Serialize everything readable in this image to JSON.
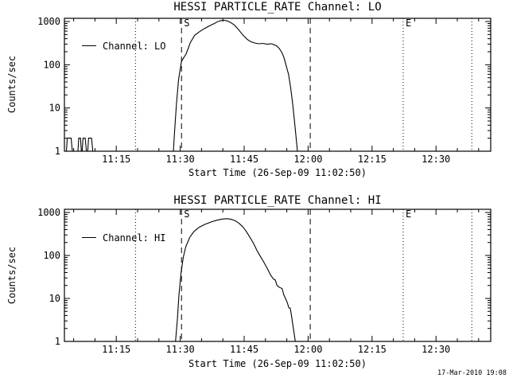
{
  "page": {
    "background": "#ffffff",
    "foreground": "#000000",
    "timestamp": "17-Mar-2010 19:08"
  },
  "chart_data": [
    {
      "type": "line",
      "title": "HESSI PARTICLE_RATE Channel: LO",
      "xlabel": "Start Time (26-Sep-09 11:02:50)",
      "ylabel": "Counts/sec",
      "legend": "Channel: LO",
      "legend_position": "upper-left-inside",
      "grid": false,
      "line_color": "#000000",
      "yscale": "log",
      "ylim": [
        1,
        1185
      ],
      "y_ticks": [
        {
          "v": 1,
          "label": "1"
        },
        {
          "v": 10,
          "label": "10"
        },
        {
          "v": 100,
          "label": "100"
        },
        {
          "v": 1000,
          "label": "1000"
        }
      ],
      "x_unit": "minutes after 11:00 on 26-Sep-09",
      "x_range": [
        2.833,
        102.833
      ],
      "x_minor_step": 5,
      "x_ticks": [
        {
          "x": 15,
          "label": "11:15"
        },
        {
          "x": 30,
          "label": "11:30"
        },
        {
          "x": 45,
          "label": "11:45"
        },
        {
          "x": 60,
          "label": "12:00"
        },
        {
          "x": 75,
          "label": "12:15"
        },
        {
          "x": 90,
          "label": "12:30"
        }
      ],
      "events": [
        {
          "x": 19.5,
          "style": "dotted",
          "label": ""
        },
        {
          "x": 30.3,
          "style": "dashed",
          "label": "S"
        },
        {
          "x": 60.5,
          "style": "dashed",
          "label": ""
        },
        {
          "x": 82.3,
          "style": "dotted",
          "label": "E"
        },
        {
          "x": 98.4,
          "style": "dotted",
          "label": ""
        }
      ],
      "points": [
        [
          2.83,
          1
        ],
        [
          3.3,
          1
        ],
        [
          3.5,
          2
        ],
        [
          4.4,
          2
        ],
        [
          4.7,
          1
        ],
        [
          6.0,
          1
        ],
        [
          6.2,
          2
        ],
        [
          6.6,
          2
        ],
        [
          6.8,
          1
        ],
        [
          7.0,
          1
        ],
        [
          7.2,
          2
        ],
        [
          7.7,
          2
        ],
        [
          8.0,
          1
        ],
        [
          8.3,
          1
        ],
        [
          8.5,
          2
        ],
        [
          9.2,
          2
        ],
        [
          9.5,
          1
        ],
        [
          25.0,
          1
        ],
        [
          28.4,
          1
        ],
        [
          28.7,
          3
        ],
        [
          29.1,
          12
        ],
        [
          29.6,
          45
        ],
        [
          30.3,
          120
        ],
        [
          31.4,
          180
        ],
        [
          32.4,
          330
        ],
        [
          33.4,
          480
        ],
        [
          34.5,
          580
        ],
        [
          35.6,
          680
        ],
        [
          36.8,
          790
        ],
        [
          38.0,
          900
        ],
        [
          38.8,
          990
        ],
        [
          39.5,
          1050
        ],
        [
          40.3,
          1065
        ],
        [
          41.0,
          1030
        ],
        [
          41.8,
          950
        ],
        [
          42.6,
          840
        ],
        [
          43.4,
          700
        ],
        [
          44.2,
          560
        ],
        [
          45.0,
          450
        ],
        [
          45.8,
          380
        ],
        [
          46.6,
          340
        ],
        [
          47.4,
          320
        ],
        [
          48.4,
          305
        ],
        [
          49.4,
          312
        ],
        [
          50.4,
          298
        ],
        [
          51.4,
          306
        ],
        [
          52.0,
          292
        ],
        [
          52.6,
          272
        ],
        [
          53.2,
          240
        ],
        [
          53.8,
          195
        ],
        [
          54.3,
          150
        ],
        [
          54.8,
          100
        ],
        [
          55.4,
          60
        ],
        [
          55.9,
          30
        ],
        [
          56.4,
          12
        ],
        [
          56.9,
          4
        ],
        [
          57.3,
          1.6
        ],
        [
          57.5,
          1
        ]
      ]
    },
    {
      "type": "line",
      "title": "HESSI PARTICLE_RATE Channel: HI",
      "xlabel": "Start Time (26-Sep-09 11:02:50)",
      "ylabel": "Counts/sec",
      "legend": "Channel: HI",
      "legend_position": "upper-left-inside",
      "grid": false,
      "line_color": "#000000",
      "yscale": "log",
      "ylim": [
        1,
        1185
      ],
      "y_ticks": [
        {
          "v": 1,
          "label": "1"
        },
        {
          "v": 10,
          "label": "10"
        },
        {
          "v": 100,
          "label": "100"
        },
        {
          "v": 1000,
          "label": "1000"
        }
      ],
      "x_unit": "minutes after 11:00 on 26-Sep-09",
      "x_range": [
        2.833,
        102.833
      ],
      "x_minor_step": 5,
      "x_ticks": [
        {
          "x": 15,
          "label": "11:15"
        },
        {
          "x": 30,
          "label": "11:30"
        },
        {
          "x": 45,
          "label": "11:45"
        },
        {
          "x": 60,
          "label": "12:00"
        },
        {
          "x": 75,
          "label": "12:15"
        },
        {
          "x": 90,
          "label": "12:30"
        }
      ],
      "events": [
        {
          "x": 19.5,
          "style": "dotted",
          "label": ""
        },
        {
          "x": 30.3,
          "style": "dashed",
          "label": "S"
        },
        {
          "x": 60.5,
          "style": "dashed",
          "label": ""
        },
        {
          "x": 82.3,
          "style": "dotted",
          "label": "E"
        },
        {
          "x": 98.4,
          "style": "dotted",
          "label": ""
        }
      ],
      "points": [
        [
          2.83,
          1
        ],
        [
          28.9,
          1
        ],
        [
          29.3,
          3
        ],
        [
          29.7,
          12
        ],
        [
          30.2,
          40
        ],
        [
          30.7,
          90
        ],
        [
          31.3,
          160
        ],
        [
          32.2,
          260
        ],
        [
          33.2,
          360
        ],
        [
          34.4,
          450
        ],
        [
          35.8,
          530
        ],
        [
          37.2,
          600
        ],
        [
          38.6,
          660
        ],
        [
          39.8,
          700
        ],
        [
          40.8,
          715
        ],
        [
          41.8,
          700
        ],
        [
          42.8,
          650
        ],
        [
          43.8,
          560
        ],
        [
          44.8,
          450
        ],
        [
          45.6,
          350
        ],
        [
          46.4,
          260
        ],
        [
          47.2,
          190
        ],
        [
          48.0,
          130
        ],
        [
          48.8,
          95
        ],
        [
          49.6,
          70
        ],
        [
          50.4,
          50
        ],
        [
          51.2,
          35
        ],
        [
          51.9,
          28
        ],
        [
          52.3,
          27
        ],
        [
          52.7,
          20
        ],
        [
          53.3,
          18
        ],
        [
          53.9,
          17
        ],
        [
          54.3,
          12
        ],
        [
          54.7,
          10
        ],
        [
          55.1,
          8
        ],
        [
          55.5,
          6
        ],
        [
          55.8,
          6
        ],
        [
          56.1,
          4
        ],
        [
          56.4,
          2.5
        ],
        [
          56.7,
          1.6
        ],
        [
          57.0,
          1
        ]
      ]
    }
  ]
}
